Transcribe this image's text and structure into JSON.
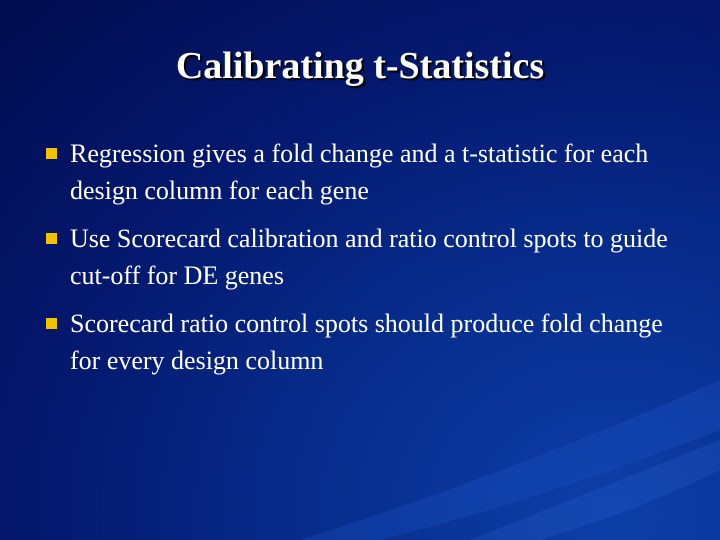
{
  "slide": {
    "title": "Calibrating t-Statistics",
    "bullets": [
      {
        "text": "Regression gives a fold change and a t-statistic for each design column for each gene"
      },
      {
        "text": "Use Scorecard calibration and ratio control spots to guide cut-off for DE genes"
      },
      {
        "text": "Scorecard ratio control spots should produce fold change for every design column"
      }
    ]
  },
  "colors": {
    "background": "#03166a",
    "text": "#ffffff",
    "bullet": "#f2c200"
  }
}
